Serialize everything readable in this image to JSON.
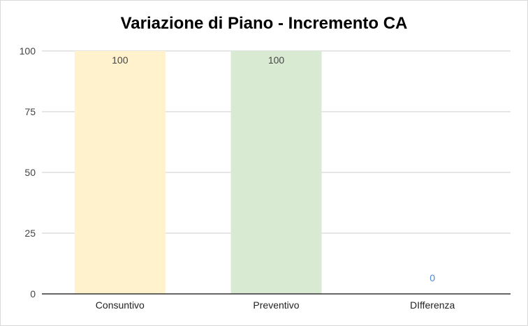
{
  "chart_data": {
    "type": "bar",
    "title": "Variazione di Piano - Incremento CA",
    "categories": [
      "Consuntivo",
      "Preventivo",
      "DIfferenza"
    ],
    "values": [
      100,
      100,
      0
    ],
    "data_labels": [
      "100",
      "100",
      "0"
    ],
    "colors": [
      "#fff2cc",
      "#d9ead3",
      "#4a86e8"
    ],
    "label_colors": [
      "#444444",
      "#444444",
      "#4a86e8"
    ],
    "ylim": [
      0,
      100
    ],
    "yticks": [
      0,
      25,
      50,
      75,
      100
    ],
    "ytick_labels": [
      "0",
      "25",
      "50",
      "75",
      "100"
    ],
    "grid": true,
    "legend": "none"
  }
}
